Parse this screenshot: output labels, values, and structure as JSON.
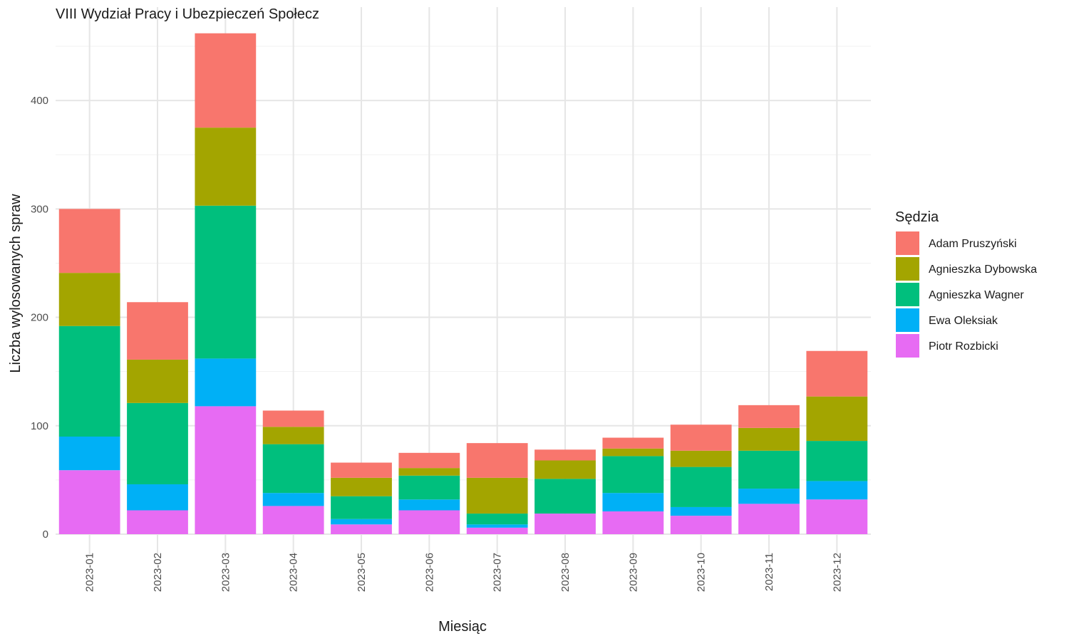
{
  "chart_data": {
    "type": "bar",
    "stacked": true,
    "title": "VIII Wydział Pracy i Ubezpieczeń Społecz",
    "xlabel": "Miesiąc",
    "ylabel": "Liczba wylosowanych spraw",
    "ylim": [
      0,
      470
    ],
    "yticks": [
      0,
      100,
      200,
      300,
      400
    ],
    "grid": true,
    "legend_title": "Sędzia",
    "legend_position": "right",
    "categories": [
      "2023-01",
      "2023-02",
      "2023-03",
      "2023-04",
      "2023-05",
      "2023-06",
      "2023-07",
      "2023-08",
      "2023-09",
      "2023-10",
      "2023-11",
      "2023-12"
    ],
    "series": [
      {
        "name": "Piotr Rozbicki",
        "color": "#E76BF3",
        "values": [
          59,
          22,
          118,
          26,
          9,
          22,
          6,
          19,
          21,
          17,
          28,
          32
        ]
      },
      {
        "name": "Ewa Oleksiak",
        "color": "#00B0F6",
        "values": [
          31,
          24,
          44,
          12,
          5,
          10,
          3,
          0,
          17,
          8,
          14,
          17
        ]
      },
      {
        "name": "Agnieszka Wagner",
        "color": "#00BF7D",
        "values": [
          102,
          75,
          141,
          45,
          21,
          22,
          10,
          32,
          34,
          37,
          35,
          37
        ]
      },
      {
        "name": "Agnieszka Dybowska",
        "color": "#A3A500",
        "values": [
          49,
          40,
          72,
          16,
          17,
          7,
          33,
          17,
          7,
          15,
          21,
          41
        ]
      },
      {
        "name": "Adam Pruszyński",
        "color": "#F8766D",
        "values": [
          59,
          53,
          87,
          15,
          14,
          14,
          32,
          10,
          10,
          24,
          21,
          42
        ]
      }
    ],
    "legend_order": [
      "Adam Pruszyński",
      "Agnieszka Dybowska",
      "Agnieszka Wagner",
      "Ewa Oleksiak",
      "Piotr Rozbicki"
    ]
  }
}
